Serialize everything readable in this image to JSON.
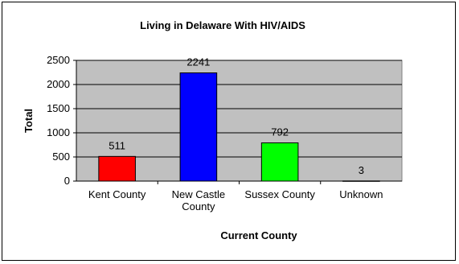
{
  "chart_data": {
    "type": "bar",
    "title": "Living in Delaware With HIV/AIDS",
    "xlabel": "Current County",
    "ylabel": "Total",
    "categories": [
      [
        "Kent County"
      ],
      [
        "New Castle",
        "County"
      ],
      [
        "Sussex County"
      ],
      [
        "Unknown"
      ]
    ],
    "values": [
      511,
      2241,
      792,
      3
    ],
    "data_labels": [
      "511",
      "2241",
      "792",
      "3"
    ],
    "bar_colors": [
      "#ff0000",
      "#0000ff",
      "#00ff00",
      "#808080"
    ],
    "ylim": [
      0,
      2500
    ],
    "yticks": [
      0,
      500,
      1000,
      1500,
      2000,
      2500
    ],
    "grid": true,
    "plot_background": "#c0c0c0",
    "legend": "none"
  }
}
